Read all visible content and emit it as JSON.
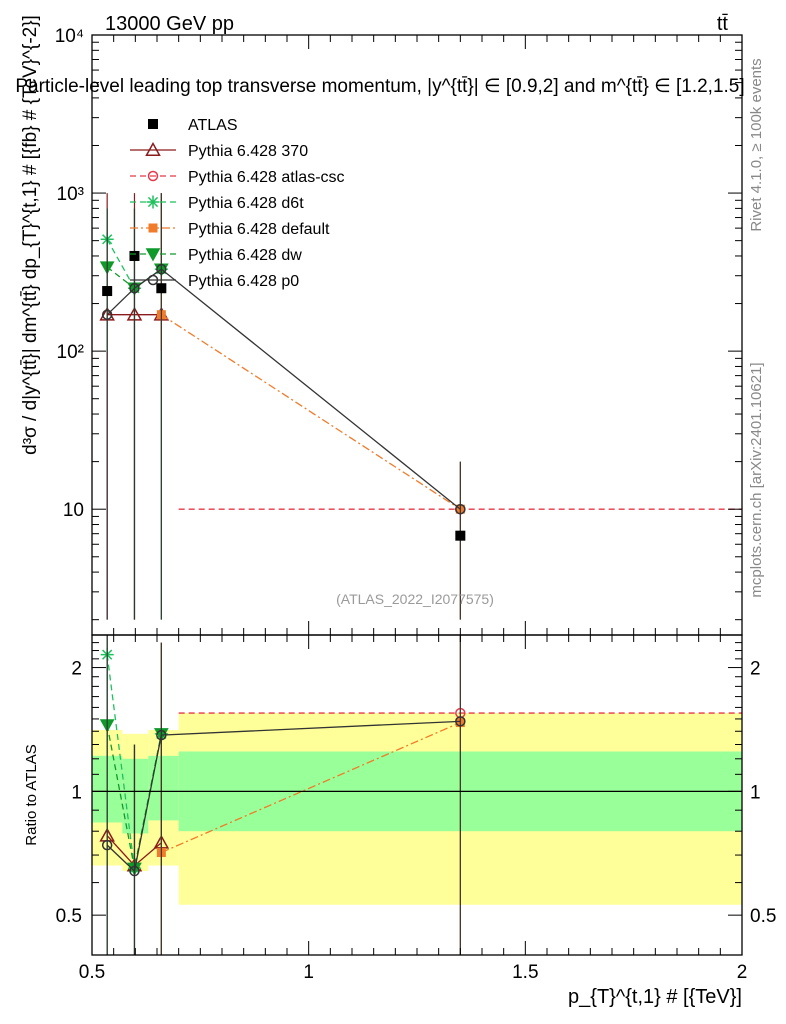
{
  "header": {
    "left": "13000 GeV pp",
    "right": "tt̄"
  },
  "title": "Particle-level leading top transverse momentum, |y^{tt̄}| ∈ [0.9,2] and m^{tt̄} ∈ [1.2,1.5]",
  "watermark": "(ATLAS_2022_I2077575)",
  "side_labels": {
    "rivet": "Rivet 4.1.0, ≥ 100k events",
    "mcplots": "mcplots.cern.ch [arXiv:2401.10621]"
  },
  "axes": {
    "xlabel": "p_{T}^{t,1} # [{TeV}]",
    "ylabel_main": "d³σ / d|y^{tt̄}| dm^{tt̄} dp_{T}^{t,1} # [{fb} # {TeV}^{-2}]",
    "ylabel_ratio": "Ratio to ATLAS",
    "x_ticks": [
      "0.5",
      "1",
      "1.5",
      "2"
    ],
    "y_ticks_main": [
      "10",
      "10²",
      "10³",
      "10⁴"
    ],
    "y_ticks_ratio": [
      "0.5",
      "1",
      "2"
    ]
  },
  "chart_data": {
    "type": "scatter",
    "x_scale": "linear",
    "y_scale_main": "log",
    "y_scale_ratio": "log",
    "xlim": [
      0.5,
      2.0
    ],
    "ylim_main": [
      1.6,
      10000
    ],
    "ylim_ratio": [
      0.4,
      2.4
    ],
    "legend_position": "top-left",
    "reference": {
      "name": "ATLAS",
      "x": [
        0.535,
        0.598,
        0.66,
        1.35
      ],
      "y": [
        240,
        400,
        250,
        6.8
      ],
      "band_edges": [
        0.5,
        0.57,
        0.63,
        0.7,
        2.0
      ],
      "band_inner": [
        [
          0.84,
          1.22
        ],
        [
          0.79,
          1.2
        ],
        [
          0.85,
          1.22
        ],
        [
          0.8,
          1.25
        ]
      ],
      "band_outer": [
        [
          0.66,
          1.41
        ],
        [
          0.64,
          1.38
        ],
        [
          0.66,
          1.41
        ],
        [
          0.53,
          1.55
        ]
      ]
    },
    "series": [
      {
        "name": "Pythia 6.428 370",
        "color": "#8b1a1a",
        "dash": "solid",
        "marker": "triangle",
        "x": [
          0.535,
          0.598,
          0.66
        ],
        "y": [
          170,
          170,
          170
        ],
        "yerr_main": [
          [
            2,
            1000
          ],
          [
            2,
            1000
          ],
          [
            100,
            1000
          ]
        ],
        "ratio": [
          0.78,
          0.66,
          0.75
        ],
        "ratio_err": [
          [
            0.4,
            2.4
          ],
          [
            0.4,
            1.3
          ],
          [
            0.4,
            2.3
          ]
        ]
      },
      {
        "name": "Pythia 6.428 atlas-csc",
        "color": "#e8374a",
        "dash": "dashed",
        "marker": "circle-open",
        "x": [
          0.7,
          2.0
        ],
        "y": [
          10,
          10
        ],
        "line_only": true,
        "ratio_line": [
          [
            0.7,
            1.55
          ],
          [
            2.0,
            1.55
          ]
        ]
      },
      {
        "name": "Pythia 6.428 d6t",
        "color": "#1ec15e",
        "dash": "dashed",
        "marker": "star",
        "x": [
          0.535,
          0.598,
          0.66
        ],
        "y": [
          510,
          250,
          330
        ],
        "yerr_main": [
          [
            100,
            800
          ],
          [
            2,
            800
          ],
          [
            2,
            1000
          ]
        ],
        "ratio": [
          2.15,
          0.65,
          1.38
        ],
        "ratio_err": [
          [
            0.4,
            2.4
          ],
          [
            0.4,
            1.3
          ],
          [
            0.4,
            2.3
          ]
        ]
      },
      {
        "name": "Pythia 6.428 default",
        "color": "#f07b2a",
        "dash": "dashdot",
        "marker": "square",
        "x": [
          0.66,
          1.35
        ],
        "y": [
          170,
          10
        ],
        "yerr_main": [
          [
            100,
            1000
          ],
          [
            2,
            20
          ]
        ],
        "ratio": [
          0.71,
          1.47
        ],
        "ratio_err": [
          [
            0.4,
            2.3
          ],
          [
            0.4,
            2.4
          ]
        ]
      },
      {
        "name": "Pythia 6.428 dw",
        "color": "#0f9a2a",
        "dash": "dashed",
        "marker": "triangle-down",
        "x": [
          0.535,
          0.598,
          0.66
        ],
        "y": [
          340,
          250,
          330
        ],
        "ratio": [
          1.45,
          0.65,
          1.38
        ]
      },
      {
        "name": "Pythia 6.428 p0",
        "color": "#333333",
        "dash": "solid",
        "marker": "circle-open",
        "x": [
          0.535,
          0.598,
          0.66,
          1.35
        ],
        "y": [
          170,
          250,
          330,
          10
        ],
        "yerr_main": [
          [
            2,
            800
          ],
          [
            2,
            800
          ],
          [
            2,
            1000
          ],
          [
            2,
            20
          ]
        ],
        "ratio": [
          0.74,
          0.64,
          1.37,
          1.48
        ],
        "ratio_err": [
          [
            0.4,
            2.4
          ],
          [
            0.4,
            1.3
          ],
          [
            0.4,
            2.3
          ],
          [
            0.4,
            2.4
          ]
        ]
      }
    ]
  }
}
